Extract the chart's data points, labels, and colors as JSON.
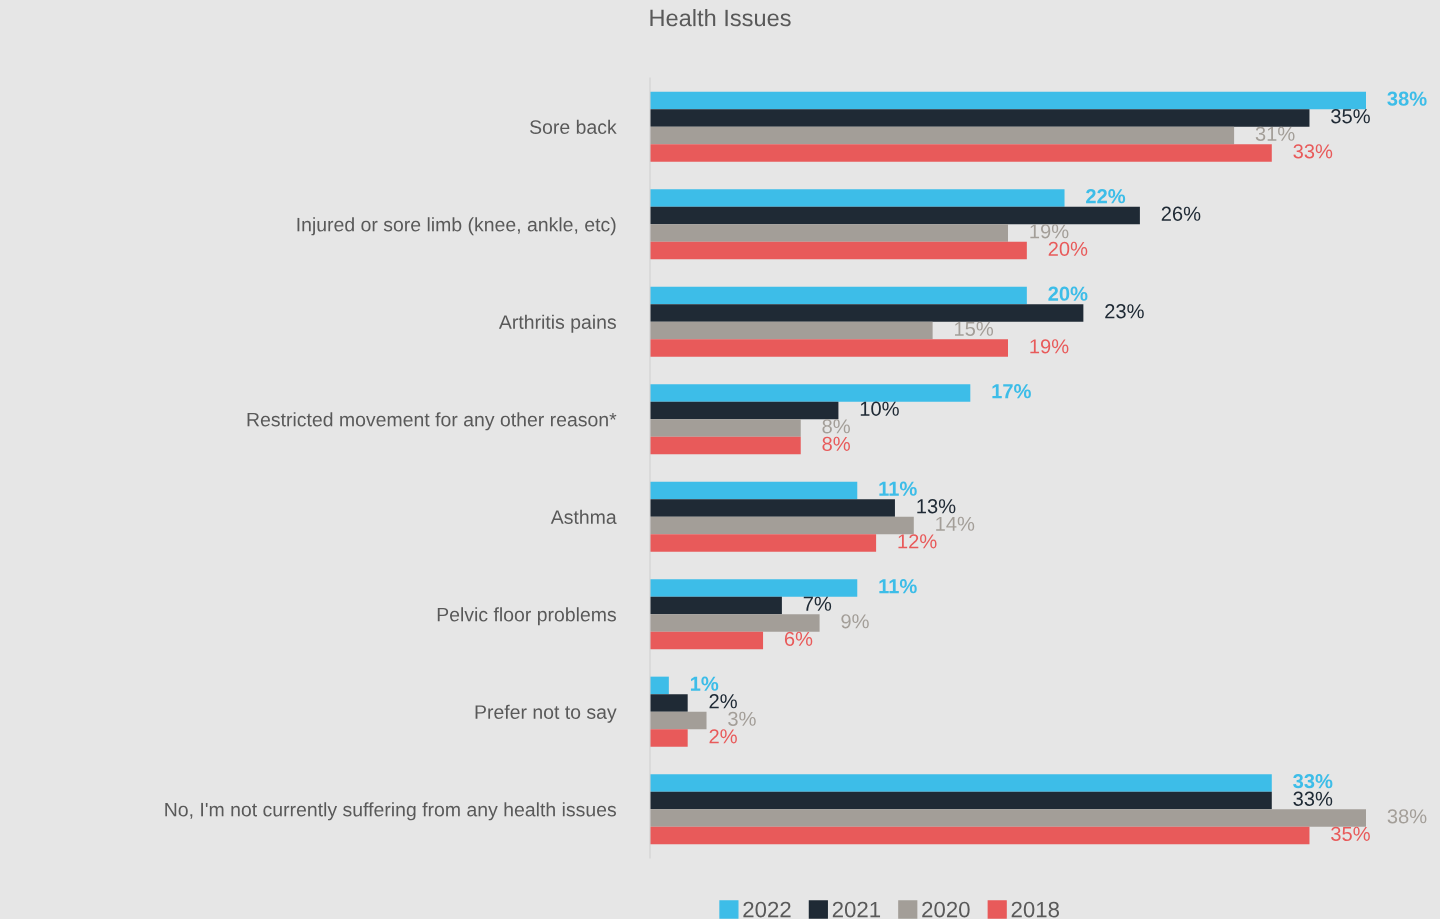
{
  "chart_data": {
    "type": "bar",
    "orientation": "horizontal",
    "title": "Health Issues",
    "categories": [
      "Sore back",
      "Injured or sore limb (knee, ankle, etc)",
      "Arthritis pains",
      "Restricted movement for any other reason*",
      "Asthma",
      "Pelvic floor problems",
      "Prefer not to say",
      "No, I'm not currently suffering from any health issues"
    ],
    "series": [
      {
        "name": "2022",
        "color": "#3dbde8",
        "values": [
          38,
          22,
          20,
          17,
          11,
          11,
          1,
          33
        ],
        "value_labels": [
          "38%",
          "22%",
          "20%",
          "17%",
          "11%",
          "11%",
          "1%",
          "33%"
        ]
      },
      {
        "name": "2021",
        "color": "#1f2a35",
        "values": [
          35,
          26,
          23,
          10,
          13,
          7,
          2,
          33
        ],
        "value_labels": [
          "35%",
          "26%",
          "23%",
          "10%",
          "13%",
          "7%",
          "2%",
          "33%"
        ]
      },
      {
        "name": "2020",
        "color": "#a39e98",
        "values": [
          31,
          19,
          15,
          8,
          14,
          9,
          3,
          38
        ],
        "value_labels": [
          "31%",
          "19%",
          "15%",
          "8%",
          "14%",
          "9%",
          "3%",
          "38%"
        ]
      },
      {
        "name": "2018",
        "color": "#e85a5a",
        "values": [
          33,
          20,
          19,
          8,
          12,
          6,
          2,
          35
        ],
        "value_labels": [
          "33%",
          "20%",
          "19%",
          "8%",
          "12%",
          "6%",
          "2%",
          "35%"
        ]
      }
    ],
    "grid": false,
    "legend": "bottom"
  }
}
